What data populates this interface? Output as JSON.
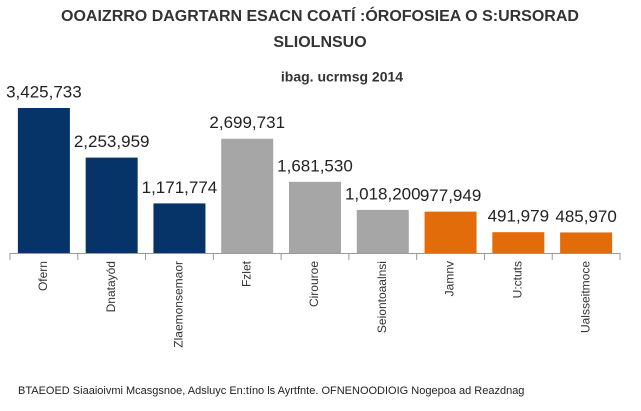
{
  "chart_data": {
    "type": "bar",
    "title": [
      "OOAIZRRO DAGRTARN ESACN COATÍ :ÓROFOSIEA O S:URSORAD",
      "SLIOLNSUO"
    ],
    "subtitle": "ibag. ucrmsg 2014",
    "source": "BTAEOED Siaaioivmi Mcasgsnoe, Adsluyc En:tíno ls Ayrtfnte. OFNENOODIOIG Nogepoa ad Reazdnag",
    "categories": [
      "Ofern",
      "Dnatayód",
      "Zlaemonsemaor",
      "Fzlet",
      "Cirouroe",
      "Seiontoaalnsi",
      "Jamnv",
      "U:ctuts",
      "Ualsseitmoce"
    ],
    "values": [
      3425733,
      2253959,
      1171774,
      2699731,
      1681530,
      1018200,
      977949,
      491979,
      485970
    ],
    "value_labels": [
      "3,425,733",
      "2,253,959",
      "1,171,774",
      "2,699,731",
      "1,681,530",
      "1,018,200",
      "977,949",
      "491,979",
      "485,970"
    ],
    "colors": [
      "#063468",
      "#063468",
      "#063468",
      "#a6a6a6",
      "#a6a6a6",
      "#a6a6a6",
      "#e36c0a",
      "#e36c0a",
      "#e36c0a"
    ]
  }
}
